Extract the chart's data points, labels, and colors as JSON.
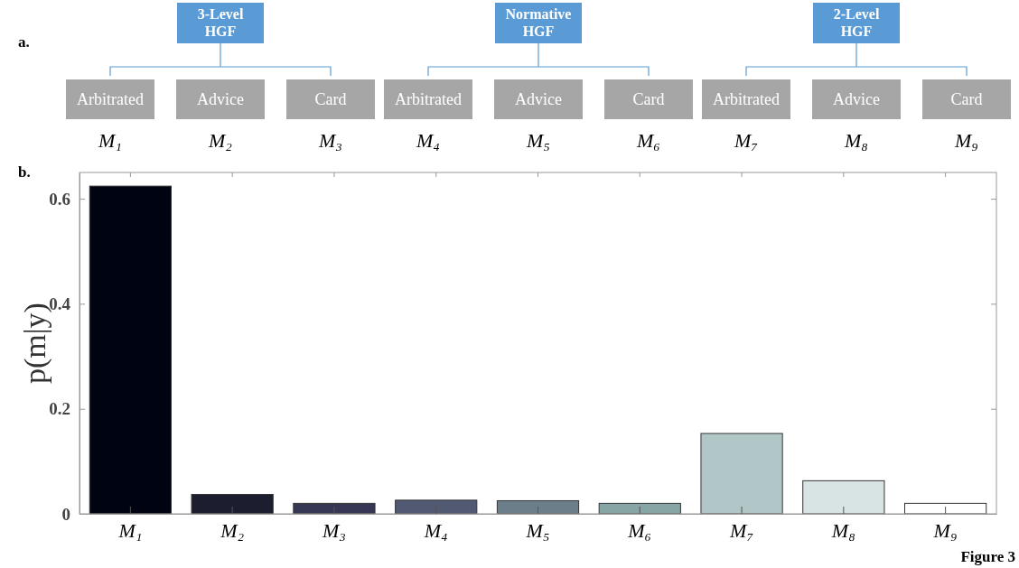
{
  "chart_data": [
    {
      "type": "other",
      "title": "a.",
      "categories": [
        "Arbitrated",
        "Advice",
        "Card",
        "Arbitrated",
        "Advice",
        "Card",
        "Arbitrated",
        "Advice",
        "Card"
      ],
      "annotations": [
        "3-Level HGF",
        "Normative HGF",
        "2-Level HGF",
        "M₁",
        "M₂",
        "M₃",
        "M₄",
        "M₅",
        "M₆",
        "M₇",
        "M₈",
        "M₉"
      ]
    },
    {
      "type": "bar",
      "title": "b.",
      "ylabel": "p(m|y)",
      "categories": [
        "M₁",
        "M₂",
        "M₃",
        "M₄",
        "M₅",
        "M₆",
        "M₇",
        "M₈",
        "M₉"
      ],
      "values": [
        0.624,
        0.037,
        0.02,
        0.026,
        0.025,
        0.02,
        0.153,
        0.063,
        0.02
      ],
      "colors": [
        "#000311",
        "#1d1d30",
        "#363655",
        "#515a72",
        "#6c7e89",
        "#87a5a4",
        "#b0c6c7",
        "#d8e3e3",
        "#ffffff"
      ],
      "ylim": [
        0,
        0.65
      ],
      "yticks": [
        0,
        0.2,
        0.4,
        0.6
      ],
      "annotations": [
        "Figure 3"
      ]
    }
  ]
}
